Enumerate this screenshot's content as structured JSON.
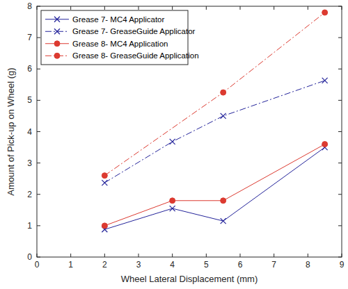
{
  "chart_data": {
    "type": "line",
    "x_label": "Wheel Lateral Displacement (mm)",
    "y_label": "Amount of Pick-up on Wheel (g)",
    "x": [
      2,
      4,
      5.5,
      8.5
    ],
    "series": [
      {
        "name": "Grease 7- MC4 Applicator",
        "color": "#23239a",
        "marker": "x",
        "line_style": "solid",
        "values": [
          0.88,
          1.55,
          1.15,
          3.5
        ]
      },
      {
        "name": "Grease 7- GreaseGuide Applicator",
        "color": "#23239a",
        "marker": "x",
        "line_style": "dashdot",
        "values": [
          2.37,
          3.68,
          4.5,
          5.63
        ]
      },
      {
        "name": "Grease 8- MC4 Application",
        "color": "#dc3a30",
        "marker": "circle",
        "line_style": "solid",
        "values": [
          1.0,
          1.8,
          1.8,
          3.6
        ]
      },
      {
        "name": "Grease 8- GreaseGuide Application",
        "color": "#dc3a30",
        "marker": "circle",
        "line_style": "dashdot",
        "x": [
          2,
          5.5,
          8.5
        ],
        "values": [
          2.6,
          5.25,
          7.8
        ]
      }
    ],
    "xlim": [
      0,
      9
    ],
    "xticks": [
      0,
      1,
      2,
      3,
      4,
      5,
      6,
      7,
      8,
      9
    ],
    "ylim": [
      0,
      8
    ],
    "yticks": [
      0,
      1,
      2,
      3,
      4,
      5,
      6,
      7,
      8
    ],
    "grid": false,
    "legend": "top-left"
  }
}
